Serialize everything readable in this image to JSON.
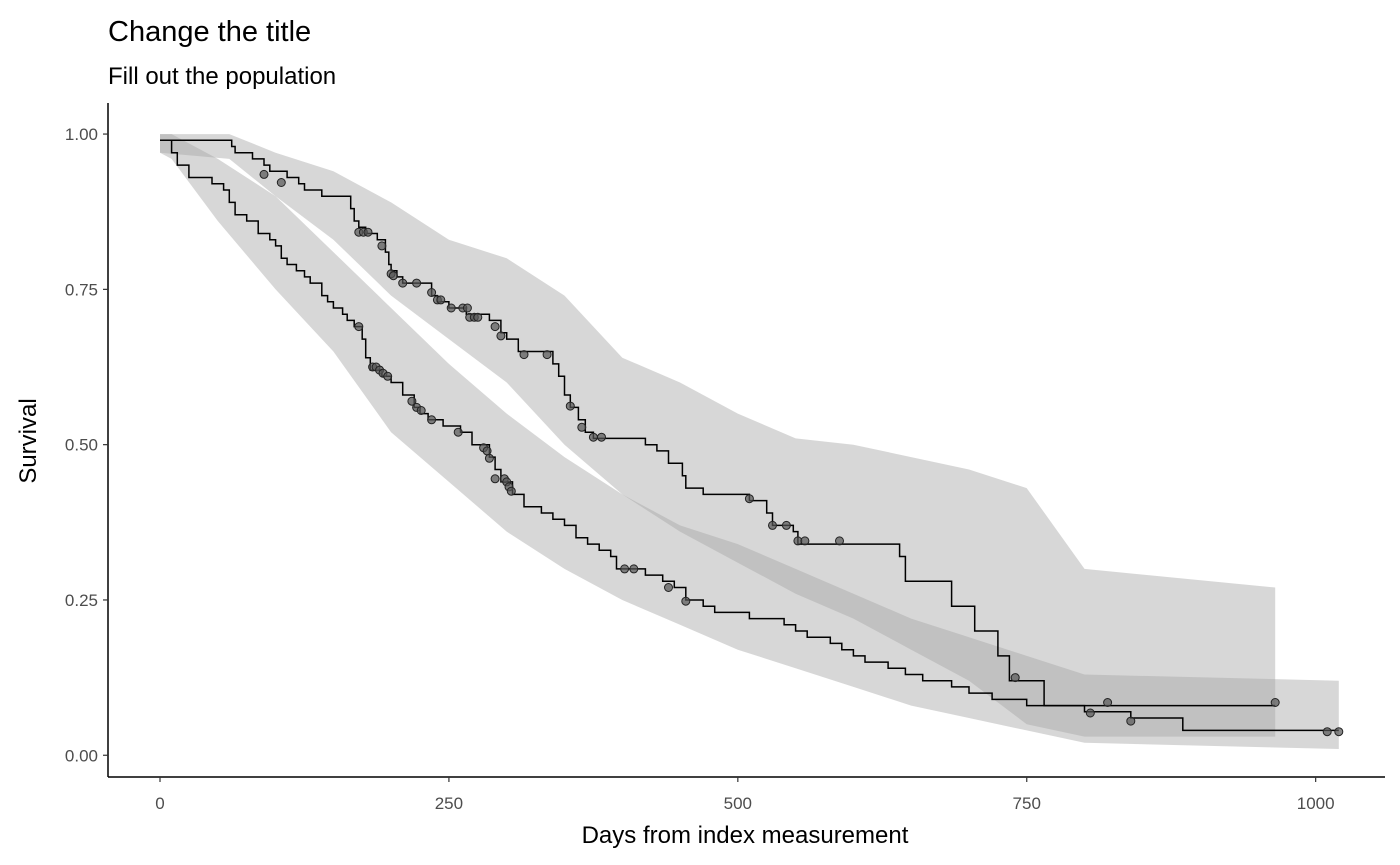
{
  "chart_data": {
    "type": "line",
    "subtype": "kaplan-meier survival step curves with confidence bands and censor markers",
    "title": "Change the title",
    "subtitle": "Fill out the population",
    "xlabel": "Days from index measurement",
    "ylabel": "Survival",
    "xlim": [
      -45,
      1060
    ],
    "ylim": [
      -0.035,
      1.05
    ],
    "xticks": [
      0,
      250,
      500,
      750,
      1000
    ],
    "xtick_labels": [
      "0",
      "250",
      "500",
      "750",
      "1000"
    ],
    "yticks": [
      0,
      0.25,
      0.5,
      0.75,
      1.0
    ],
    "ytick_labels": [
      "0.00",
      "0.25",
      "0.50",
      "0.75",
      "1.00"
    ],
    "grid": false,
    "legend": "none",
    "colors": {
      "line": "#000000",
      "band": "#a6a6a6",
      "band_opacity": 0.45,
      "marker_fill": "#555555",
      "axis": "#000000",
      "tick_label": "#4d4d4d"
    },
    "series": [
      {
        "steps": [
          [
            0,
            0.99
          ],
          [
            60,
            0.99
          ],
          [
            62,
            0.98
          ],
          [
            65,
            0.97
          ],
          [
            80,
            0.96
          ],
          [
            90,
            0.95
          ],
          [
            95,
            0.94
          ],
          [
            110,
            0.93
          ],
          [
            120,
            0.92
          ],
          [
            125,
            0.91
          ],
          [
            140,
            0.9
          ],
          [
            165,
            0.88
          ],
          [
            168,
            0.86
          ],
          [
            172,
            0.85
          ],
          [
            178,
            0.84
          ],
          [
            188,
            0.83
          ],
          [
            195,
            0.81
          ],
          [
            198,
            0.79
          ],
          [
            200,
            0.78
          ],
          [
            205,
            0.77
          ],
          [
            210,
            0.76
          ],
          [
            235,
            0.74
          ],
          [
            240,
            0.73
          ],
          [
            250,
            0.72
          ],
          [
            265,
            0.71
          ],
          [
            285,
            0.7
          ],
          [
            295,
            0.68
          ],
          [
            300,
            0.67
          ],
          [
            310,
            0.65
          ],
          [
            340,
            0.63
          ],
          [
            345,
            0.61
          ],
          [
            350,
            0.58
          ],
          [
            355,
            0.56
          ],
          [
            362,
            0.54
          ],
          [
            368,
            0.52
          ],
          [
            375,
            0.51
          ],
          [
            420,
            0.5
          ],
          [
            430,
            0.49
          ],
          [
            440,
            0.47
          ],
          [
            452,
            0.45
          ],
          [
            455,
            0.43
          ],
          [
            470,
            0.42
          ],
          [
            510,
            0.41
          ],
          [
            525,
            0.39
          ],
          [
            530,
            0.37
          ],
          [
            548,
            0.36
          ],
          [
            552,
            0.34
          ],
          [
            640,
            0.32
          ],
          [
            645,
            0.28
          ],
          [
            685,
            0.24
          ],
          [
            705,
            0.2
          ],
          [
            725,
            0.16
          ],
          [
            735,
            0.12
          ],
          [
            765,
            0.08
          ],
          [
            965,
            0.08
          ]
        ],
        "censor": [
          [
            90,
            0.935
          ],
          [
            105,
            0.922
          ],
          [
            172,
            0.842
          ],
          [
            176,
            0.842
          ],
          [
            180,
            0.842
          ],
          [
            192,
            0.82
          ],
          [
            200,
            0.775
          ],
          [
            202,
            0.772
          ],
          [
            210,
            0.76
          ],
          [
            222,
            0.76
          ],
          [
            235,
            0.745
          ],
          [
            240,
            0.733
          ],
          [
            243,
            0.733
          ],
          [
            252,
            0.72
          ],
          [
            262,
            0.72
          ],
          [
            266,
            0.72
          ],
          [
            268,
            0.705
          ],
          [
            272,
            0.705
          ],
          [
            275,
            0.705
          ],
          [
            290,
            0.69
          ],
          [
            295,
            0.675
          ],
          [
            315,
            0.645
          ],
          [
            335,
            0.645
          ],
          [
            355,
            0.562
          ],
          [
            365,
            0.528
          ],
          [
            375,
            0.512
          ],
          [
            382,
            0.512
          ],
          [
            510,
            0.413
          ],
          [
            530,
            0.37
          ],
          [
            542,
            0.37
          ],
          [
            552,
            0.345
          ],
          [
            558,
            0.345
          ],
          [
            588,
            0.345
          ],
          [
            740,
            0.125
          ],
          [
            965,
            0.085
          ]
        ],
        "ci_lower": [
          [
            0,
            0.97
          ],
          [
            60,
            0.96
          ],
          [
            100,
            0.9
          ],
          [
            150,
            0.83
          ],
          [
            200,
            0.74
          ],
          [
            250,
            0.67
          ],
          [
            300,
            0.6
          ],
          [
            350,
            0.5
          ],
          [
            400,
            0.42
          ],
          [
            450,
            0.36
          ],
          [
            500,
            0.31
          ],
          [
            550,
            0.26
          ],
          [
            600,
            0.22
          ],
          [
            650,
            0.17
          ],
          [
            700,
            0.12
          ],
          [
            750,
            0.05
          ],
          [
            800,
            0.03
          ],
          [
            965,
            0.03
          ]
        ],
        "ci_upper": [
          [
            0,
            1.0
          ],
          [
            60,
            1.0
          ],
          [
            100,
            0.97
          ],
          [
            150,
            0.94
          ],
          [
            200,
            0.89
          ],
          [
            250,
            0.83
          ],
          [
            300,
            0.8
          ],
          [
            350,
            0.74
          ],
          [
            400,
            0.64
          ],
          [
            450,
            0.6
          ],
          [
            500,
            0.55
          ],
          [
            550,
            0.51
          ],
          [
            600,
            0.5
          ],
          [
            650,
            0.48
          ],
          [
            700,
            0.46
          ],
          [
            750,
            0.43
          ],
          [
            800,
            0.3
          ],
          [
            965,
            0.27
          ]
        ]
      },
      {
        "steps": [
          [
            0,
            0.99
          ],
          [
            8,
            0.99
          ],
          [
            10,
            0.97
          ],
          [
            15,
            0.95
          ],
          [
            25,
            0.93
          ],
          [
            45,
            0.92
          ],
          [
            55,
            0.91
          ],
          [
            60,
            0.89
          ],
          [
            65,
            0.87
          ],
          [
            75,
            0.86
          ],
          [
            85,
            0.84
          ],
          [
            95,
            0.83
          ],
          [
            100,
            0.82
          ],
          [
            105,
            0.8
          ],
          [
            110,
            0.79
          ],
          [
            118,
            0.78
          ],
          [
            125,
            0.77
          ],
          [
            130,
            0.76
          ],
          [
            140,
            0.74
          ],
          [
            145,
            0.73
          ],
          [
            150,
            0.72
          ],
          [
            158,
            0.71
          ],
          [
            162,
            0.7
          ],
          [
            168,
            0.69
          ],
          [
            175,
            0.67
          ],
          [
            178,
            0.64
          ],
          [
            182,
            0.62
          ],
          [
            192,
            0.61
          ],
          [
            200,
            0.6
          ],
          [
            210,
            0.58
          ],
          [
            220,
            0.56
          ],
          [
            225,
            0.55
          ],
          [
            232,
            0.54
          ],
          [
            245,
            0.53
          ],
          [
            260,
            0.52
          ],
          [
            270,
            0.5
          ],
          [
            285,
            0.48
          ],
          [
            290,
            0.46
          ],
          [
            295,
            0.44
          ],
          [
            305,
            0.42
          ],
          [
            315,
            0.4
          ],
          [
            330,
            0.39
          ],
          [
            340,
            0.38
          ],
          [
            350,
            0.37
          ],
          [
            360,
            0.35
          ],
          [
            370,
            0.34
          ],
          [
            380,
            0.33
          ],
          [
            390,
            0.32
          ],
          [
            395,
            0.3
          ],
          [
            420,
            0.29
          ],
          [
            435,
            0.28
          ],
          [
            445,
            0.27
          ],
          [
            455,
            0.25
          ],
          [
            470,
            0.24
          ],
          [
            480,
            0.23
          ],
          [
            510,
            0.22
          ],
          [
            540,
            0.21
          ],
          [
            550,
            0.2
          ],
          [
            560,
            0.19
          ],
          [
            580,
            0.18
          ],
          [
            590,
            0.17
          ],
          [
            600,
            0.16
          ],
          [
            610,
            0.15
          ],
          [
            630,
            0.14
          ],
          [
            645,
            0.13
          ],
          [
            660,
            0.12
          ],
          [
            685,
            0.11
          ],
          [
            700,
            0.1
          ],
          [
            720,
            0.09
          ],
          [
            750,
            0.08
          ],
          [
            800,
            0.07
          ],
          [
            840,
            0.06
          ],
          [
            885,
            0.04
          ],
          [
            1020,
            0.04
          ]
        ],
        "censor": [
          [
            172,
            0.69
          ],
          [
            184,
            0.625
          ],
          [
            187,
            0.625
          ],
          [
            190,
            0.62
          ],
          [
            193,
            0.615
          ],
          [
            197,
            0.61
          ],
          [
            218,
            0.57
          ],
          [
            222,
            0.56
          ],
          [
            226,
            0.555
          ],
          [
            235,
            0.54
          ],
          [
            258,
            0.52
          ],
          [
            280,
            0.495
          ],
          [
            283,
            0.49
          ],
          [
            285,
            0.478
          ],
          [
            290,
            0.445
          ],
          [
            298,
            0.445
          ],
          [
            300,
            0.44
          ],
          [
            302,
            0.432
          ],
          [
            304,
            0.425
          ],
          [
            402,
            0.3
          ],
          [
            410,
            0.3
          ],
          [
            440,
            0.27
          ],
          [
            455,
            0.248
          ],
          [
            805,
            0.068
          ],
          [
            820,
            0.085
          ],
          [
            840,
            0.055
          ],
          [
            1010,
            0.038
          ],
          [
            1020,
            0.038
          ]
        ],
        "ci_lower": [
          [
            0,
            0.97
          ],
          [
            10,
            0.96
          ],
          [
            50,
            0.86
          ],
          [
            100,
            0.75
          ],
          [
            150,
            0.65
          ],
          [
            200,
            0.52
          ],
          [
            250,
            0.44
          ],
          [
            300,
            0.36
          ],
          [
            350,
            0.3
          ],
          [
            400,
            0.25
          ],
          [
            450,
            0.21
          ],
          [
            500,
            0.17
          ],
          [
            550,
            0.14
          ],
          [
            600,
            0.11
          ],
          [
            650,
            0.08
          ],
          [
            700,
            0.06
          ],
          [
            750,
            0.04
          ],
          [
            800,
            0.02
          ],
          [
            1020,
            0.01
          ]
        ],
        "ci_upper": [
          [
            0,
            1.0
          ],
          [
            10,
            1.0
          ],
          [
            50,
            0.96
          ],
          [
            100,
            0.9
          ],
          [
            150,
            0.81
          ],
          [
            200,
            0.72
          ],
          [
            250,
            0.63
          ],
          [
            300,
            0.55
          ],
          [
            350,
            0.48
          ],
          [
            400,
            0.42
          ],
          [
            450,
            0.37
          ],
          [
            500,
            0.34
          ],
          [
            550,
            0.3
          ],
          [
            600,
            0.26
          ],
          [
            650,
            0.22
          ],
          [
            700,
            0.19
          ],
          [
            750,
            0.16
          ],
          [
            800,
            0.13
          ],
          [
            1020,
            0.12
          ]
        ]
      }
    ]
  }
}
